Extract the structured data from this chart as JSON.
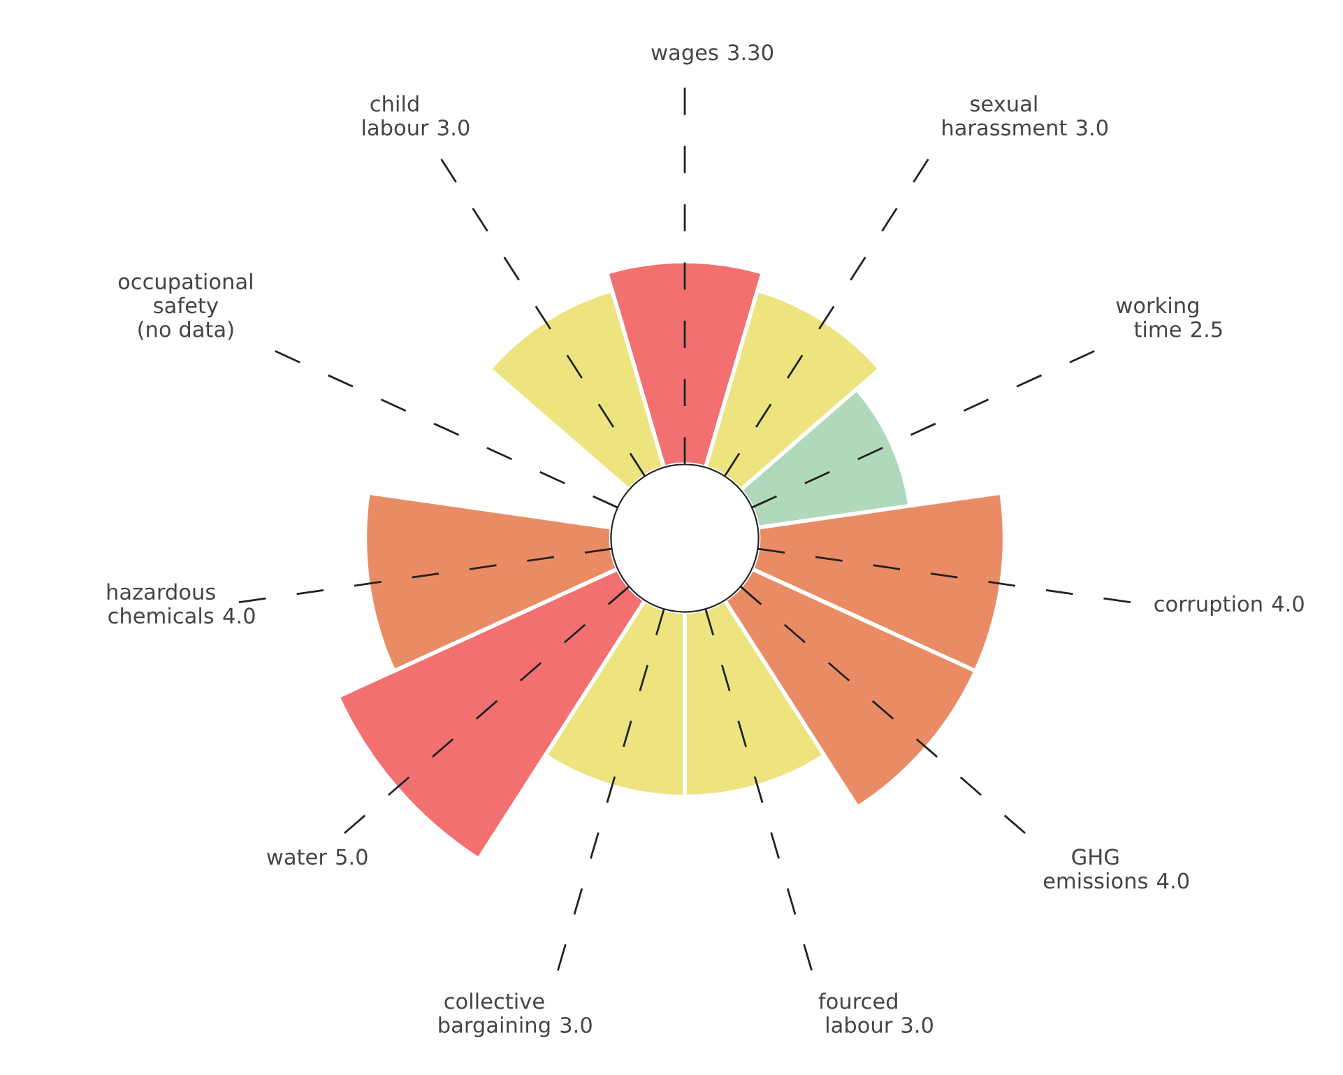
{
  "chart_data": {
    "type": "other",
    "categories": [
      "wages",
      "sexual\nharassment",
      "working\ntime",
      "corruption",
      "GHG\nemissions",
      "fourced\nlabour",
      "collective\nbargaining",
      "water",
      "hazardous\nchemicals",
      "occupational\nsafety\n(no data)",
      "child\nlabour"
    ],
    "series": [
      {
        "type": "bar",
        "values": [
          3.3,
          3.0,
          2.5,
          4.0,
          4.0,
          3.0,
          3.0,
          5.0,
          4.0,
          null,
          3.0
        ],
        "value_labels": [
          "3.30",
          "3.0",
          "2.5",
          "4.0",
          "4.0",
          "3.0",
          "3.0",
          "5.0",
          "4.0",
          null,
          "3.0"
        ],
        "colors": [
          "#f27070",
          "#ede480",
          "#b0d9bc",
          "#e98c66",
          "#e98c66",
          "#ede480",
          "#ede480",
          "#f27070",
          "#e98c66",
          "#ede480",
          "#ede480"
        ]
      }
    ]
  }
}
